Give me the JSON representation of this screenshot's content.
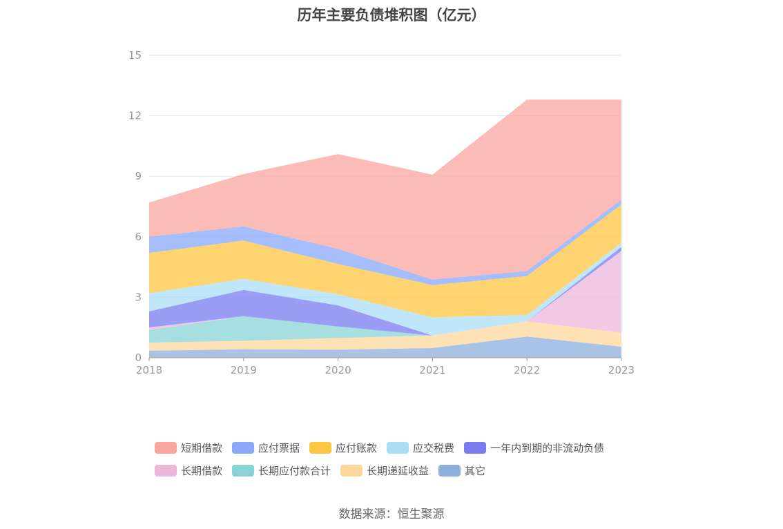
{
  "chart_data": {
    "type": "area",
    "stacked": true,
    "title": "历年主要负债堆积图（亿元）",
    "xlabel": "",
    "ylabel": "",
    "x": [
      "2018",
      "2019",
      "2020",
      "2021",
      "2022",
      "2023"
    ],
    "ylim": [
      0,
      15
    ],
    "yticks": [
      "0",
      "3",
      "6",
      "9",
      "12",
      "15"
    ],
    "grid": true,
    "legend_position": "bottom",
    "series": [
      {
        "name": "其它",
        "color": "#8eaedc",
        "values": [
          0.35,
          0.42,
          0.4,
          0.48,
          1.05,
          0.55
        ]
      },
      {
        "name": "长期递延收益",
        "color": "#fdd89c",
        "values": [
          0.4,
          0.42,
          0.58,
          0.62,
          0.75,
          0.7
        ]
      },
      {
        "name": "长期应付款合计",
        "color": "#8ad3d5",
        "values": [
          0.62,
          1.22,
          0.57,
          0.0,
          0.0,
          0.0
        ]
      },
      {
        "name": "长期借款",
        "color": "#ebb8dc",
        "values": [
          0.13,
          0.0,
          0.0,
          0.0,
          0.0,
          4.05
        ]
      },
      {
        "name": "一年内到期的非流动负债",
        "color": "#7a7cf0",
        "values": [
          0.8,
          1.3,
          1.05,
          0.0,
          0.0,
          0.2
        ]
      },
      {
        "name": "应交税费",
        "color": "#a9def7",
        "values": [
          0.9,
          0.55,
          0.55,
          0.9,
          0.32,
          0.2
        ]
      },
      {
        "name": "应付账款",
        "color": "#fdc640",
        "values": [
          2.0,
          1.9,
          1.5,
          1.6,
          1.93,
          1.9
        ]
      },
      {
        "name": "应付票据",
        "color": "#8aa8fb",
        "values": [
          0.8,
          0.7,
          0.75,
          0.28,
          0.25,
          0.25
        ]
      },
      {
        "name": "短期借款",
        "color": "#f9a6a0",
        "values": [
          1.7,
          2.6,
          4.7,
          5.2,
          8.5,
          4.95
        ]
      }
    ],
    "legend_order": [
      "短期借款",
      "应付票据",
      "应付账款",
      "应交税费",
      "一年内到期的非流动负债",
      "长期借款",
      "长期应付款合计",
      "长期递延收益",
      "其它"
    ]
  },
  "source_text": "数据来源：恒生聚源"
}
